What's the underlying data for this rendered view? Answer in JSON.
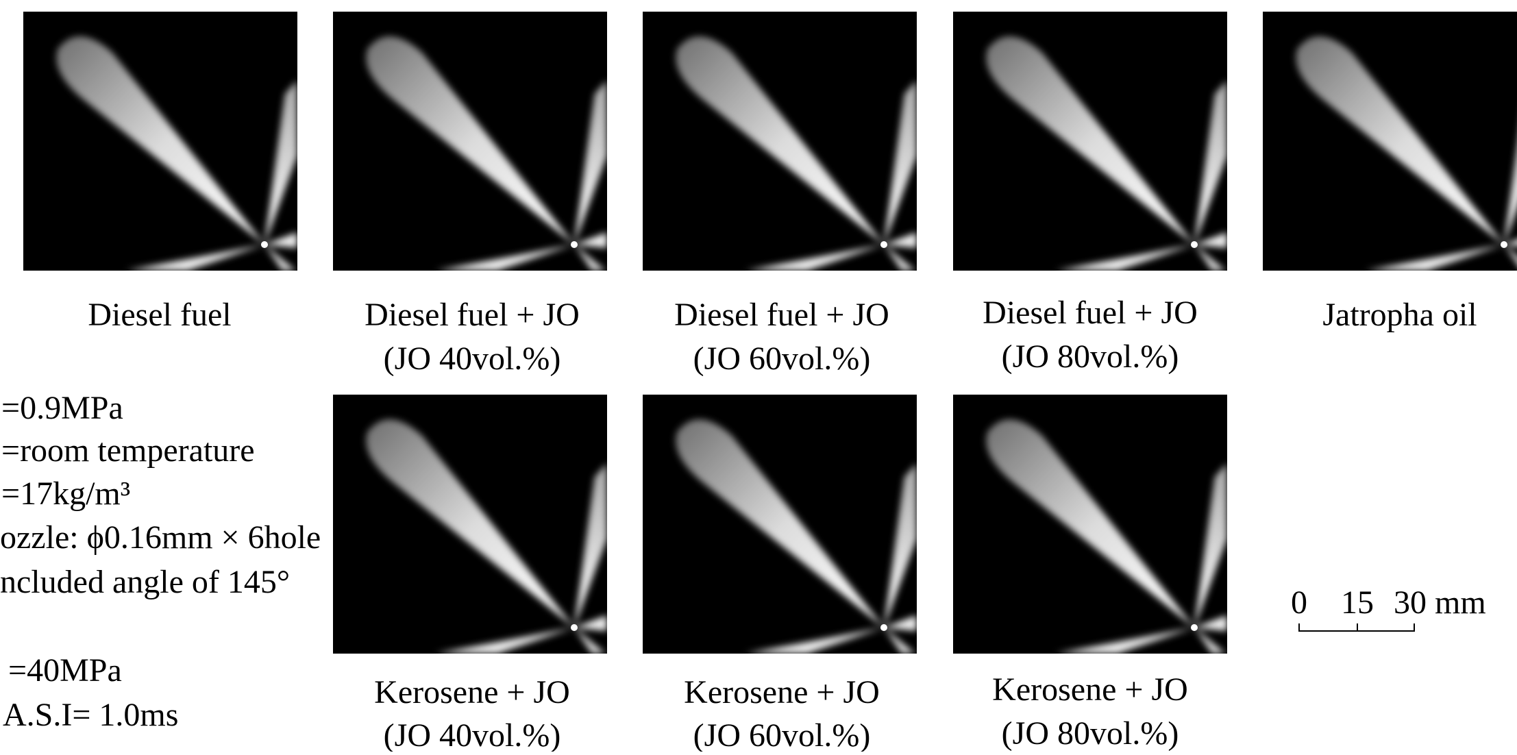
{
  "top_row": [
    {
      "line1": "Diesel fuel"
    },
    {
      "line1": "Diesel fuel + JO",
      "line2": "(JO 40vol.%)"
    },
    {
      "line1": "Diesel fuel + JO",
      "line2": "(JO 60vol.%)"
    },
    {
      "line1": "Diesel fuel + JO",
      "line2": "(JO 80vol.%)"
    },
    {
      "line1": "Jatropha oil"
    }
  ],
  "bottom_row": [
    {
      "line1": "Kerosene + JO",
      "line2": "(JO 40vol.%)"
    },
    {
      "line1": "Kerosene + JO",
      "line2": "(JO 60vol.%)"
    },
    {
      "line1": "Kerosene + JO",
      "line2": "(JO 80vol.%)"
    }
  ],
  "conditions": [
    "=0.9MPa",
    "=room temperature",
    "=17kg/m³",
    "ozzle: ϕ0.16mm × 6hole",
    "ncluded angle of 145°",
    "=40MPa",
    "A.S.I= 1.0ms"
  ],
  "scale_bar": {
    "labels": [
      "0",
      "15",
      "30 mm"
    ]
  }
}
